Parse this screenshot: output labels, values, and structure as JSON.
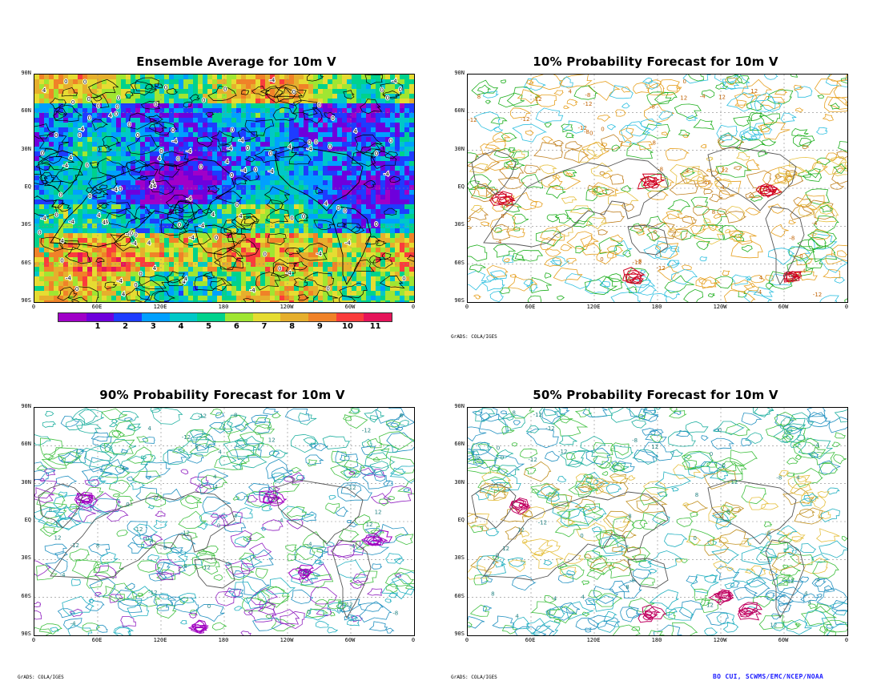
{
  "panels": [
    {
      "id": "ensemble",
      "title": "Ensemble Average for 10m V",
      "style": "shaded"
    },
    {
      "id": "p10",
      "title": "10% Probability Forecast for 10m V",
      "style": "contour-warm"
    },
    {
      "id": "p90",
      "title": "90% Probability Forecast for 10m V",
      "style": "contour-cool"
    },
    {
      "id": "p50",
      "title": "50% Probability Forecast for 10m V",
      "style": "contour-mixed"
    }
  ],
  "lat_labels": [
    "90N",
    "60N",
    "30N",
    "EQ",
    "30S",
    "60S",
    "90S"
  ],
  "lon_labels": [
    "0",
    "60E",
    "120E",
    "180",
    "120W",
    "60W",
    "0"
  ],
  "colorbar": {
    "labels": [
      "1",
      "2",
      "3",
      "4",
      "5",
      "6",
      "7",
      "8",
      "9",
      "10",
      "11"
    ],
    "colors": [
      "#a000c8",
      "#6e00dc",
      "#1e3cff",
      "#00a0ff",
      "#00c8c8",
      "#00d28c",
      "#a0e632",
      "#e6dc32",
      "#e6af2d",
      "#f08228",
      "#fa3c3c",
      "#e6145a"
    ]
  },
  "credits": {
    "grads": "GrADS: COLA/IGES",
    "footer": "BO CUI, SCWMS/EMC/NCEP/NOAA"
  }
}
